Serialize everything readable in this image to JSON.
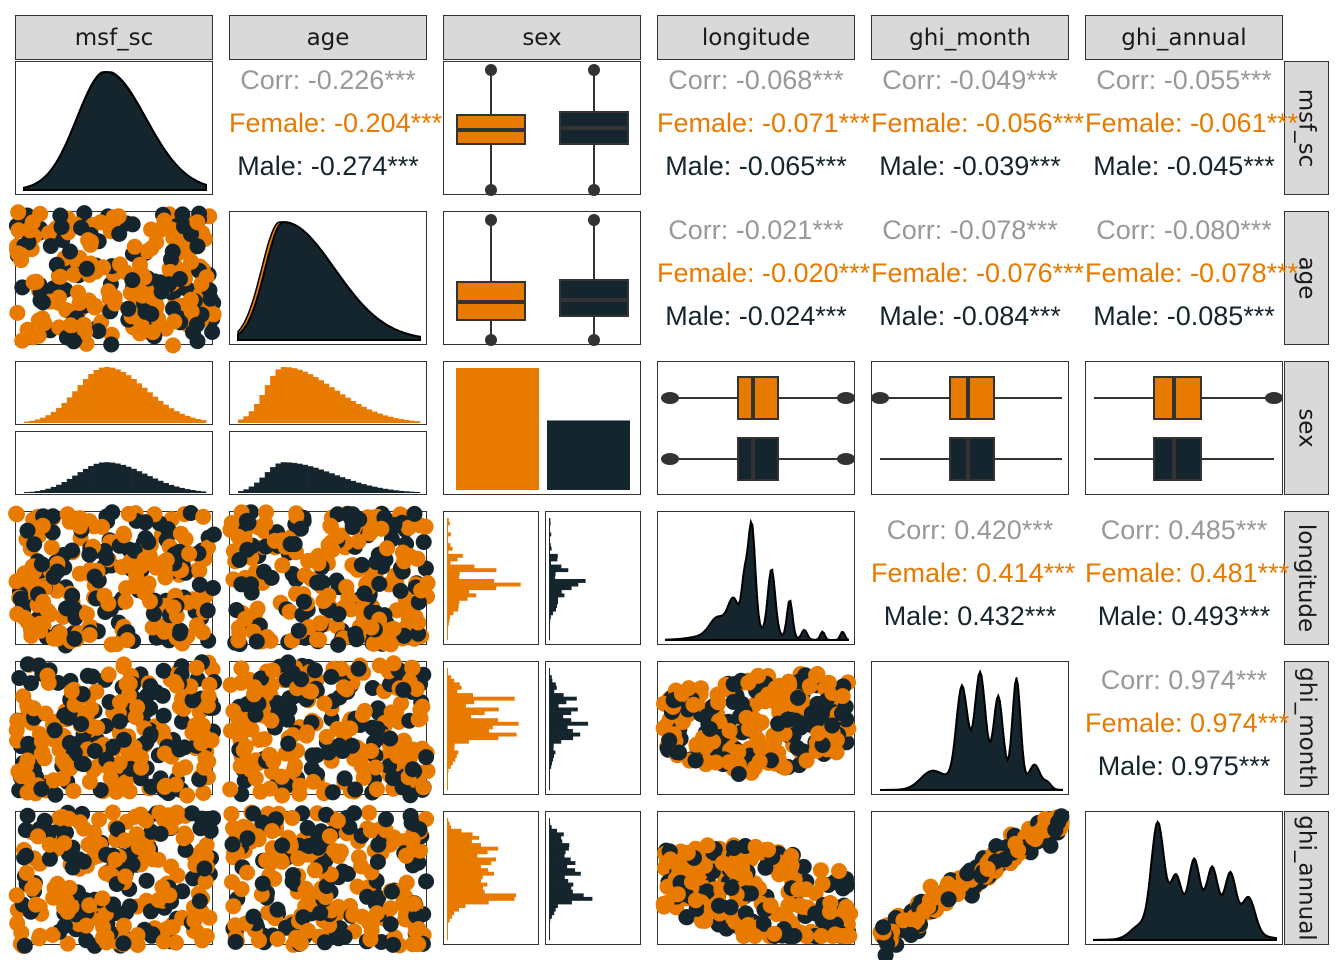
{
  "colors": {
    "female": "#e87a00",
    "male": "#15252e",
    "overall": "#999999",
    "strip_bg": "#d9d9d9",
    "border": "#333333"
  },
  "variables": [
    "msf_sc",
    "age",
    "sex",
    "longitude",
    "ghi_month",
    "ghi_annual"
  ],
  "chart_data": {
    "type": "scatter-matrix",
    "grouping": {
      "variable": "sex",
      "levels": [
        "Female",
        "Male"
      ],
      "counts_relative": [
        1.0,
        0.57
      ]
    },
    "correlations": [
      {
        "row": "msf_sc",
        "col": "age",
        "overall": "Corr: -0.226***",
        "female": "Female: -0.204***",
        "male": "Male: -0.274***"
      },
      {
        "row": "msf_sc",
        "col": "longitude",
        "overall": "Corr: -0.068***",
        "female": "Female: -0.071***",
        "male": "Male: -0.065***"
      },
      {
        "row": "msf_sc",
        "col": "ghi_month",
        "overall": "Corr: -0.049***",
        "female": "Female: -0.056***",
        "male": "Male: -0.039***"
      },
      {
        "row": "msf_sc",
        "col": "ghi_annual",
        "overall": "Corr: -0.055***",
        "female": "Female: -0.061***",
        "male": "Male: -0.045***"
      },
      {
        "row": "age",
        "col": "longitude",
        "overall": "Corr: -0.021***",
        "female": "Female: -0.020***",
        "male": "Male: -0.024***"
      },
      {
        "row": "age",
        "col": "ghi_month",
        "overall": "Corr: -0.078***",
        "female": "Female: -0.076***",
        "male": "Male: -0.084***"
      },
      {
        "row": "age",
        "col": "ghi_annual",
        "overall": "Corr: -0.080***",
        "female": "Female: -0.078***",
        "male": "Male: -0.085***"
      },
      {
        "row": "longitude",
        "col": "ghi_month",
        "overall": "Corr: 0.420***",
        "female": "Female: 0.414***",
        "male": "Male: 0.432***"
      },
      {
        "row": "longitude",
        "col": "ghi_annual",
        "overall": "Corr: 0.485***",
        "female": "Female: 0.481***",
        "male": "Male: 0.493***"
      },
      {
        "row": "ghi_month",
        "col": "ghi_annual",
        "overall": "Corr: 0.974***",
        "female": "Female: 0.974***",
        "male": "Male: 0.975***"
      }
    ]
  }
}
